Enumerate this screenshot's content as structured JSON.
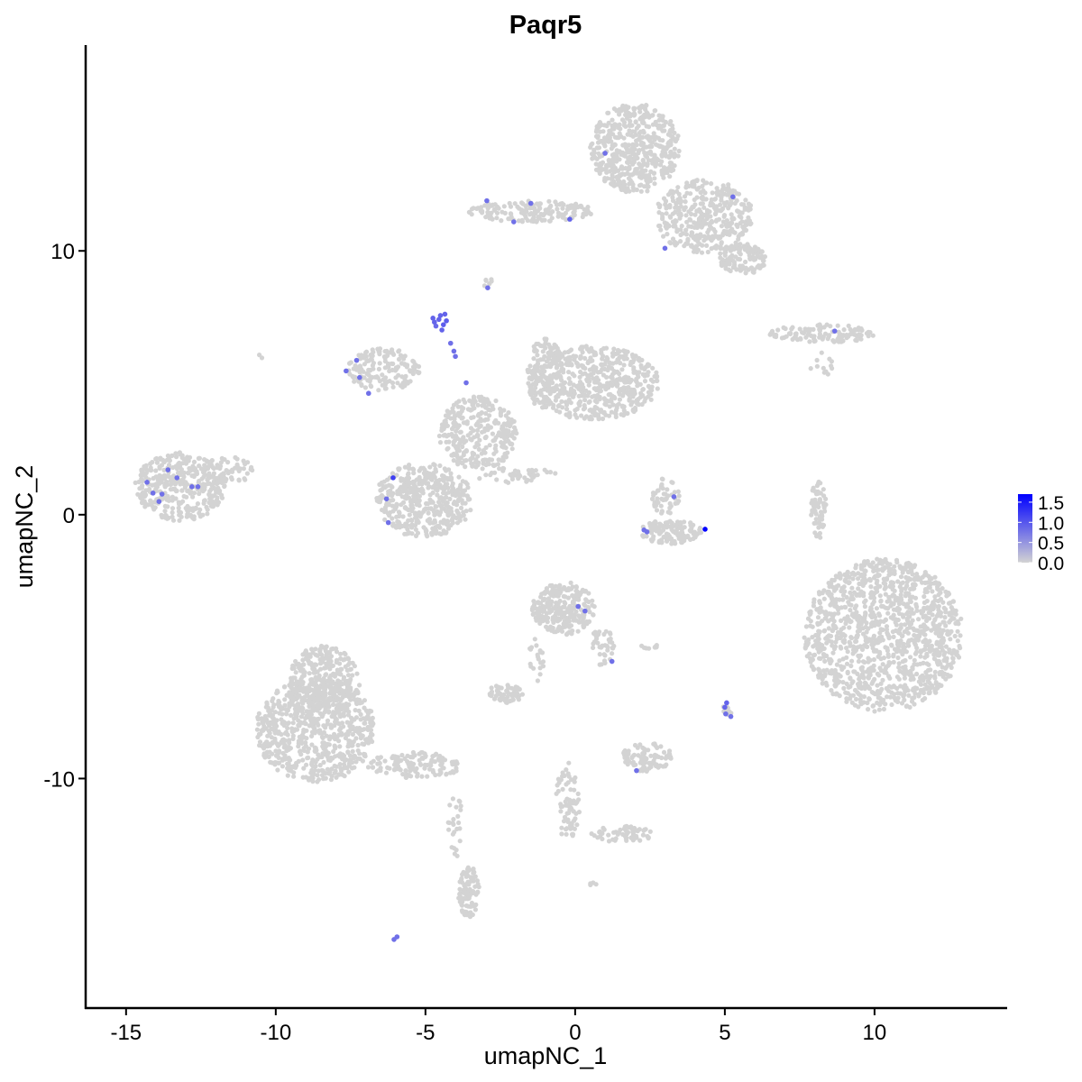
{
  "chart_data": {
    "type": "scatter",
    "title": "Paqr5",
    "xlabel": "umapNC_1",
    "ylabel": "umapNC_2",
    "xlim": [
      -16.35,
      14.4
    ],
    "ylim": [
      -18.7,
      17.8
    ],
    "xticks": [
      -15,
      -10,
      -5,
      0,
      5,
      10
    ],
    "xtick_labels": [
      "-15",
      "-10",
      "-5",
      "0",
      "5",
      "10"
    ],
    "yticks": [
      -10,
      0,
      10
    ],
    "ytick_labels": [
      "-10",
      "0",
      "10"
    ],
    "grid": false,
    "legend": {
      "placement": "right",
      "type": "colorbar",
      "range": [
        0,
        1.7
      ],
      "ticks": [
        0,
        0.5,
        1.0,
        1.5
      ],
      "tick_labels": [
        "0.0",
        "0.5",
        "1.0",
        "1.5"
      ],
      "low_color": "#D3D3D3",
      "high_color": "#0000FF"
    },
    "background_cells_value": 0,
    "background_cell_regions": [
      {
        "cx": 2.0,
        "cy": 13.9,
        "rx": 1.5,
        "ry": 1.7,
        "n": 500
      },
      {
        "cx": 4.3,
        "cy": 11.3,
        "rx": 1.65,
        "ry": 1.4,
        "n": 380
      },
      {
        "cx": 5.6,
        "cy": 9.7,
        "rx": 0.8,
        "ry": 0.6,
        "n": 120
      },
      {
        "cx": -1.45,
        "cy": 11.5,
        "rx": 2.1,
        "ry": 0.4,
        "n": 160
      },
      {
        "cx": 8.25,
        "cy": 6.86,
        "rx": 1.75,
        "ry": 0.35,
        "n": 120
      },
      {
        "cx": 8.2,
        "cy": 5.7,
        "rx": 0.4,
        "ry": 0.5,
        "n": 12
      },
      {
        "cx": 10.3,
        "cy": -4.57,
        "rx": 2.65,
        "ry": 2.9,
        "n": 1200
      },
      {
        "cx": 8.13,
        "cy": 0.2,
        "rx": 0.25,
        "ry": 1.2,
        "n": 60
      },
      {
        "cx": 0.6,
        "cy": 5.0,
        "rx": 2.2,
        "ry": 1.4,
        "n": 550
      },
      {
        "cx": -1.0,
        "cy": 5.3,
        "rx": 0.6,
        "ry": 1.4,
        "n": 120
      },
      {
        "cx": -5.06,
        "cy": 0.55,
        "rx": 1.65,
        "ry": 1.4,
        "n": 450
      },
      {
        "cx": -3.25,
        "cy": 3.1,
        "rx": 1.3,
        "ry": 1.4,
        "n": 300
      },
      {
        "cx": -6.4,
        "cy": 5.5,
        "rx": 1.2,
        "ry": 0.8,
        "n": 160
      },
      {
        "cx": -2.0,
        "cy": 1.5,
        "rx": 1.4,
        "ry": 0.3,
        "n": 40
      },
      {
        "cx": -13.2,
        "cy": 1.06,
        "rx": 1.5,
        "ry": 1.3,
        "n": 350
      },
      {
        "cx": -11.6,
        "cy": 1.7,
        "rx": 0.9,
        "ry": 0.5,
        "n": 60
      },
      {
        "cx": -8.67,
        "cy": -8.16,
        "rx": 2.0,
        "ry": 2.0,
        "n": 700
      },
      {
        "cx": -8.4,
        "cy": -6.45,
        "rx": 1.2,
        "ry": 1.5,
        "n": 300
      },
      {
        "cx": -5.36,
        "cy": -9.5,
        "rx": 1.6,
        "ry": 0.5,
        "n": 130
      },
      {
        "cx": -3.55,
        "cy": -14.3,
        "rx": 0.35,
        "ry": 1.0,
        "n": 90
      },
      {
        "cx": -4.0,
        "cy": -11.8,
        "rx": 0.25,
        "ry": 1.3,
        "n": 25
      },
      {
        "cx": -0.4,
        "cy": -3.55,
        "rx": 1.05,
        "ry": 1.0,
        "n": 250
      },
      {
        "cx": 0.9,
        "cy": -5.0,
        "rx": 0.4,
        "ry": 0.7,
        "n": 40
      },
      {
        "cx": -1.3,
        "cy": -5.5,
        "rx": 0.25,
        "ry": 1.0,
        "n": 20
      },
      {
        "cx": -2.35,
        "cy": -6.8,
        "rx": 0.6,
        "ry": 0.35,
        "n": 60
      },
      {
        "cx": 3.2,
        "cy": -0.65,
        "rx": 1.05,
        "ry": 0.45,
        "n": 120
      },
      {
        "cx": 3.0,
        "cy": 0.7,
        "rx": 0.5,
        "ry": 0.7,
        "n": 50
      },
      {
        "cx": 2.4,
        "cy": -9.2,
        "rx": 0.85,
        "ry": 0.55,
        "n": 90
      },
      {
        "cx": -0.25,
        "cy": -10.9,
        "rx": 0.4,
        "ry": 1.5,
        "n": 70
      },
      {
        "cx": 1.57,
        "cy": -12.1,
        "rx": 1.05,
        "ry": 0.3,
        "n": 60
      },
      {
        "cx": 2.5,
        "cy": -5.0,
        "rx": 0.4,
        "ry": 0.1,
        "n": 10
      },
      {
        "cx": 5.1,
        "cy": -7.3,
        "rx": 0.2,
        "ry": 0.3,
        "n": 12
      },
      {
        "cx": 0.6,
        "cy": -14.0,
        "rx": 0.15,
        "ry": 0.1,
        "n": 4
      },
      {
        "cx": -2.9,
        "cy": 8.8,
        "rx": 0.15,
        "ry": 0.4,
        "n": 6
      },
      {
        "cx": -10.5,
        "cy": 6.0,
        "rx": 0.1,
        "ry": 0.1,
        "n": 2
      }
    ],
    "expressing_cells": [
      {
        "x": -4.55,
        "y": 7.4,
        "v": 0.9
      },
      {
        "x": -4.7,
        "y": 7.3,
        "v": 0.9
      },
      {
        "x": -4.4,
        "y": 7.2,
        "v": 0.95
      },
      {
        "x": -4.5,
        "y": 7.55,
        "v": 0.9
      },
      {
        "x": -4.35,
        "y": 7.6,
        "v": 0.9
      },
      {
        "x": -4.65,
        "y": 7.15,
        "v": 0.85
      },
      {
        "x": -4.45,
        "y": 7.0,
        "v": 0.9
      },
      {
        "x": -4.3,
        "y": 7.35,
        "v": 0.95
      },
      {
        "x": -4.75,
        "y": 7.45,
        "v": 0.9
      },
      {
        "x": -4.16,
        "y": 6.5,
        "v": 0.8
      },
      {
        "x": -4.05,
        "y": 6.2,
        "v": 0.8
      },
      {
        "x": -4.0,
        "y": 6.0,
        "v": 0.8
      },
      {
        "x": -3.64,
        "y": 5.0,
        "v": 0.8
      },
      {
        "x": 1.0,
        "y": 13.7,
        "v": 0.8
      },
      {
        "x": -2.95,
        "y": 11.9,
        "v": 0.8
      },
      {
        "x": -2.05,
        "y": 11.1,
        "v": 0.8
      },
      {
        "x": -1.48,
        "y": 11.8,
        "v": 0.8
      },
      {
        "x": -0.18,
        "y": 11.2,
        "v": 0.9
      },
      {
        "x": 5.27,
        "y": 12.05,
        "v": 0.8
      },
      {
        "x": 3.0,
        "y": 10.1,
        "v": 0.8
      },
      {
        "x": -2.92,
        "y": 8.6,
        "v": 0.8
      },
      {
        "x": 8.67,
        "y": 6.96,
        "v": 0.8
      },
      {
        "x": -7.3,
        "y": 5.85,
        "v": 0.8
      },
      {
        "x": -7.65,
        "y": 5.45,
        "v": 0.8
      },
      {
        "x": -7.2,
        "y": 5.2,
        "v": 0.8
      },
      {
        "x": -6.9,
        "y": 4.6,
        "v": 0.8
      },
      {
        "x": -6.08,
        "y": 1.4,
        "v": 1.2
      },
      {
        "x": -6.3,
        "y": 0.6,
        "v": 0.8
      },
      {
        "x": -6.24,
        "y": -0.3,
        "v": 0.8
      },
      {
        "x": -14.3,
        "y": 1.23,
        "v": 0.8
      },
      {
        "x": -13.6,
        "y": 1.7,
        "v": 0.8
      },
      {
        "x": -13.3,
        "y": 1.4,
        "v": 0.8
      },
      {
        "x": -14.1,
        "y": 0.82,
        "v": 0.8
      },
      {
        "x": -13.9,
        "y": 0.5,
        "v": 0.8
      },
      {
        "x": -12.8,
        "y": 1.06,
        "v": 0.8
      },
      {
        "x": -12.6,
        "y": 1.06,
        "v": 0.8
      },
      {
        "x": -13.8,
        "y": 0.78,
        "v": 0.8
      },
      {
        "x": 3.3,
        "y": 0.68,
        "v": 0.8
      },
      {
        "x": 2.3,
        "y": -0.58,
        "v": 0.8
      },
      {
        "x": 2.4,
        "y": -0.65,
        "v": 0.8
      },
      {
        "x": 4.34,
        "y": -0.55,
        "v": 1.7
      },
      {
        "x": 0.1,
        "y": -3.48,
        "v": 0.8
      },
      {
        "x": 0.33,
        "y": -3.65,
        "v": 0.8
      },
      {
        "x": 1.23,
        "y": -5.56,
        "v": 0.8
      },
      {
        "x": 5.06,
        "y": -7.13,
        "v": 0.9
      },
      {
        "x": 5.0,
        "y": -7.3,
        "v": 0.9
      },
      {
        "x": 5.03,
        "y": -7.55,
        "v": 0.8
      },
      {
        "x": 5.2,
        "y": -7.65,
        "v": 0.8
      },
      {
        "x": 2.05,
        "y": -9.7,
        "v": 0.8
      },
      {
        "x": -6.05,
        "y": -16.1,
        "v": 0.8
      },
      {
        "x": -5.95,
        "y": -16.0,
        "v": 0.8
      }
    ]
  }
}
